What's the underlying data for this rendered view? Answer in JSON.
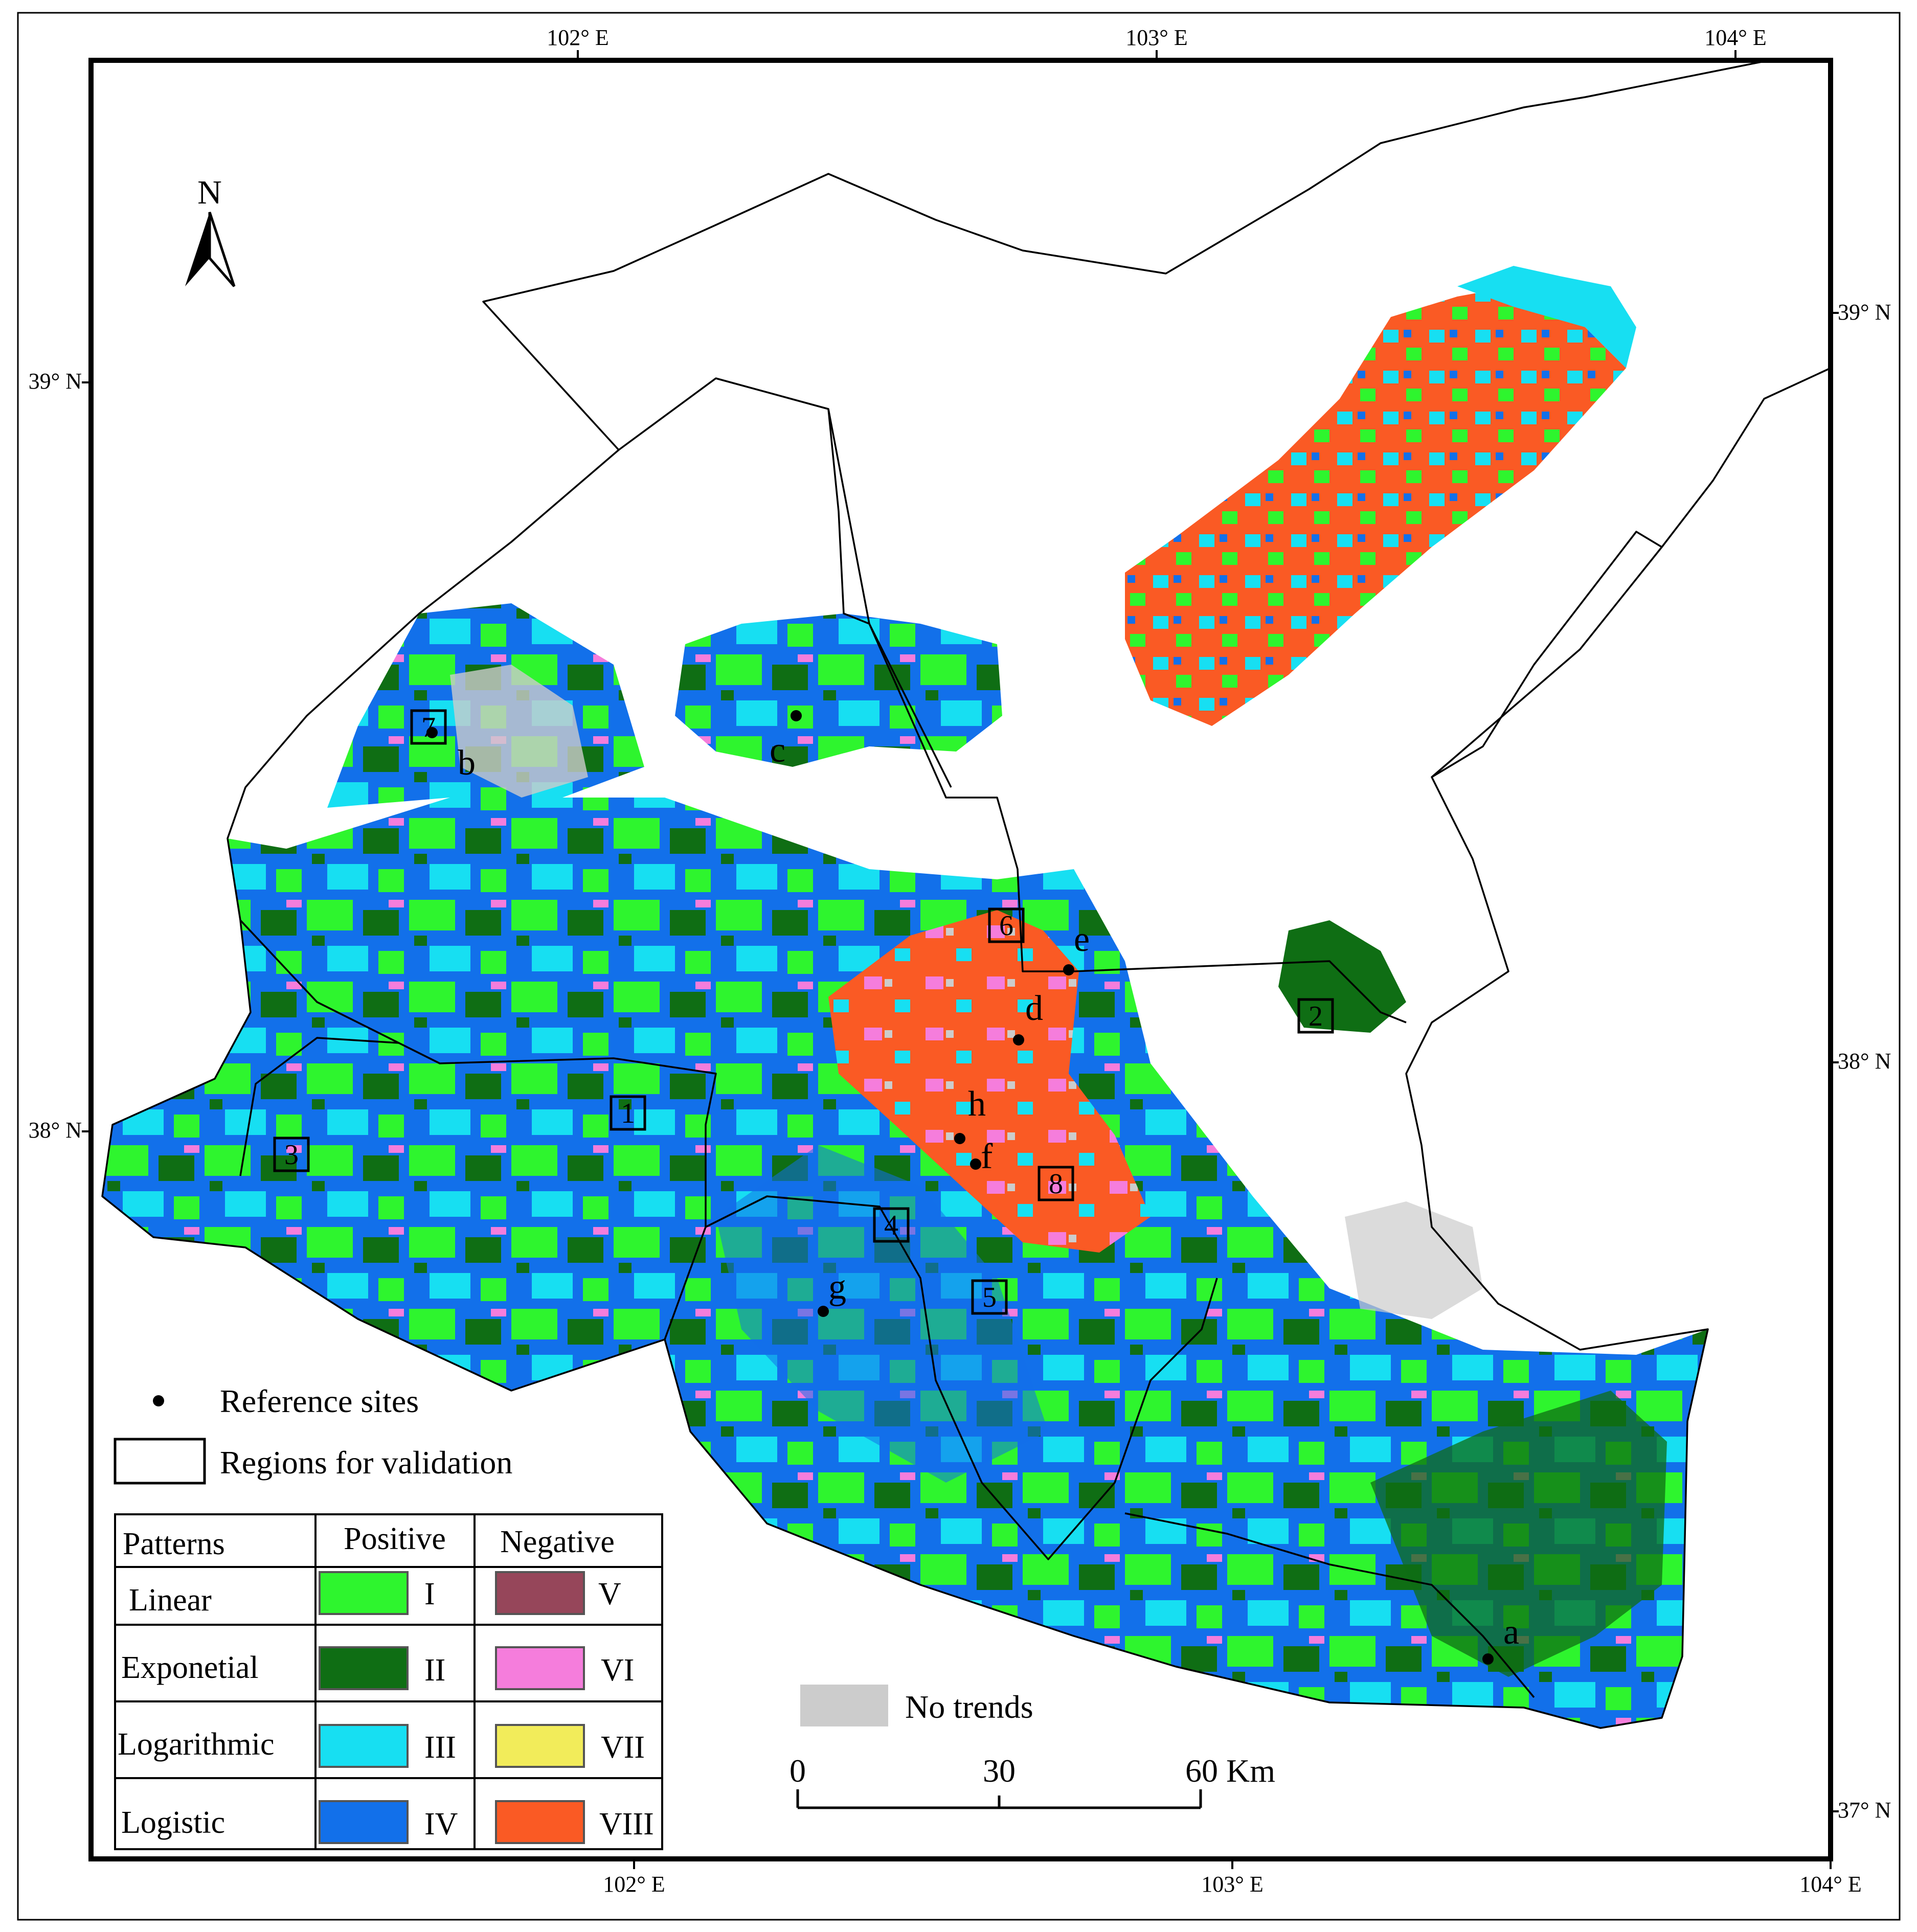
{
  "map": {
    "graticule": {
      "top_lon": [
        "102° E",
        "103° E",
        "104° E"
      ],
      "bottom_lon": [
        "102° E",
        "103° E",
        "104° E"
      ],
      "left_lat": [
        "39° N",
        "38° N"
      ],
      "right_lat": [
        "39° N",
        "38° N",
        "37° N"
      ]
    },
    "north_arrow": {
      "label": "N"
    },
    "reference_sites": [
      "a",
      "b",
      "c",
      "d",
      "e",
      "f",
      "g",
      "h"
    ],
    "validation_regions": [
      "1",
      "2",
      "3",
      "4",
      "5",
      "6",
      "7",
      "8"
    ],
    "legend": {
      "reference_sites_label": "Reference sites",
      "regions_label": "Regions for validation",
      "no_trends_label": "No trends",
      "no_trends_color": "#cccccc",
      "table": {
        "header": [
          "Patterns",
          "Positive",
          "Negative"
        ],
        "rows": [
          {
            "pattern": "Linear",
            "positive": "I",
            "positive_color": "#2ef52e",
            "negative": "V",
            "negative_color": "#96465a"
          },
          {
            "pattern": "Exponetial",
            "positive": "II",
            "positive_color": "#0f6e14",
            "negative": "VI",
            "negative_color": "#f57ddc"
          },
          {
            "pattern": "Logarithmic",
            "positive": "III",
            "positive_color": "#17dff2",
            "negative": "VII",
            "negative_color": "#f2ec5a"
          },
          {
            "pattern": "Logistic",
            "positive": "IV",
            "positive_color": "#1270ea",
            "negative": "VIII",
            "negative_color": "#fa5a24"
          }
        ]
      }
    },
    "scale_bar": {
      "ticks": [
        "0",
        "30",
        "60 Km"
      ]
    }
  }
}
